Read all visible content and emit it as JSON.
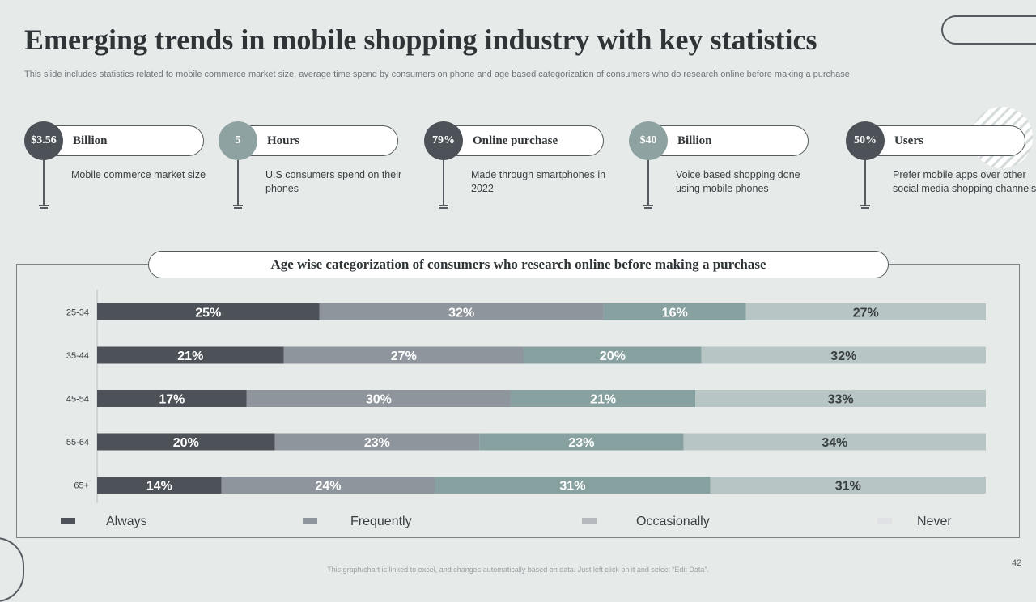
{
  "title": "Emerging trends in mobile shopping industry with key statistics",
  "subtitle": "This slide includes statistics related to mobile commerce market size, average time spend by consumers on phone and age based categorization of consumers who do research online before making a purchase",
  "stats": [
    {
      "value": "$3.56",
      "label": "Billion",
      "desc": "Mobile commerce market size",
      "color": "#4d5258"
    },
    {
      "value": "5",
      "label": "Hours",
      "desc": "U.S consumers spend on their phones",
      "color": "#8ea3a1"
    },
    {
      "value": "79%",
      "label": "Online purchase",
      "desc": "Made through smartphones in 2022",
      "color": "#4d5258"
    },
    {
      "value": "$40",
      "label": "Billion",
      "desc": "Voice based shopping done using mobile phones",
      "color": "#8ea3a1"
    },
    {
      "value": "50%",
      "label": "Users",
      "desc": "Prefer mobile apps over other social media shopping channels",
      "color": "#4d5258"
    }
  ],
  "chart_data": {
    "type": "bar",
    "orientation": "horizontal",
    "stacked": true,
    "title": "Age wise categorization of consumers who research online before making a purchase",
    "categories": [
      "25-34",
      "35-44",
      "45-54",
      "55-64",
      "65+"
    ],
    "series": [
      {
        "name": "Always",
        "values": [
          25,
          21,
          17,
          20,
          14
        ],
        "color": "#4d5258"
      },
      {
        "name": "Frequently",
        "values": [
          32,
          27,
          30,
          23,
          24
        ],
        "color": "#8f959c"
      },
      {
        "name": "Occasionally",
        "values": [
          16,
          20,
          21,
          23,
          31
        ],
        "color": "#86a1a0"
      },
      {
        "name": "Never",
        "values": [
          27,
          32,
          33,
          34,
          31
        ],
        "color": "#b7c6c5"
      }
    ],
    "legend": {
      "position": "bottom",
      "items": [
        {
          "label": "Always",
          "color": "#4d5258"
        },
        {
          "label": "Frequently",
          "color": "#8f959c"
        },
        {
          "label": "Occasionally",
          "color": "#b6b9bd"
        },
        {
          "label": "Never",
          "color": "#dfe1e4"
        }
      ]
    },
    "xlabel": "",
    "ylabel": ""
  },
  "footer": "This graph/chart is linked to excel, and changes automatically based on data. Just left click on it and select “Edit Data”.",
  "page_number": "42"
}
